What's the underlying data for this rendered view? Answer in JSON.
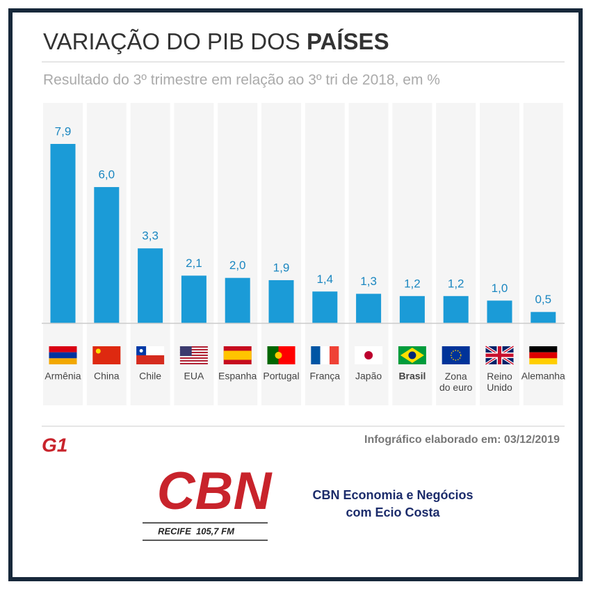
{
  "chart_data": {
    "type": "bar",
    "title": [
      "VARIAÇÃO DO PIB DOS",
      "PAÍSES"
    ],
    "subtitle": "Resultado do 3º trimestre em relação ao 3º tri de 2018, em %",
    "categories": [
      "Armênia",
      "China",
      "Chile",
      "EUA",
      "Espanha",
      "Portugal",
      "França",
      "Japão",
      "Brasil",
      "Zona do euro",
      "Reino Unido",
      "Alemanha"
    ],
    "values": [
      7.9,
      6.0,
      3.3,
      2.1,
      2.0,
      1.9,
      1.4,
      1.3,
      1.2,
      1.2,
      1.0,
      0.5
    ],
    "value_labels": [
      "7,9",
      "6,0",
      "3,3",
      "2,1",
      "2,0",
      "1,9",
      "1,4",
      "1,3",
      "1,2",
      "1,2",
      "1,0",
      "0,5"
    ],
    "color": "#1b9bd7",
    "source": "Infográfico elaborado em: 03/12/2019",
    "logo": "G1"
  },
  "footer": {
    "brand": "CBN",
    "station": "RECIFE  105,7 FM",
    "program": [
      "CBN Economia e Negócios",
      "com Ecio Costa"
    ]
  }
}
